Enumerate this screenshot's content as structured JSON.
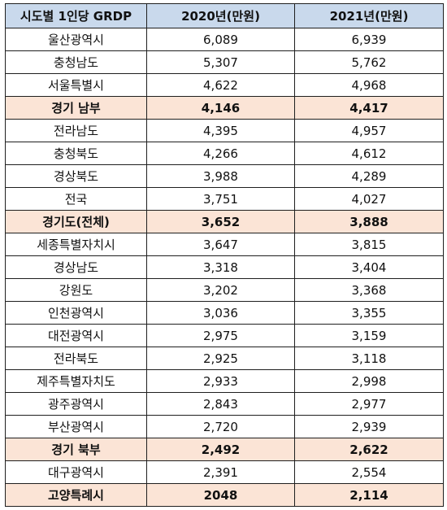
{
  "table": {
    "headers": [
      "시도별 1인당 GRDP",
      "2020년(만원)",
      "2021년(만원)"
    ],
    "rows": [
      {
        "region": "울산광역시",
        "y2020": "6,089",
        "y2021": "6,939",
        "highlight": false
      },
      {
        "region": "충청남도",
        "y2020": "5,307",
        "y2021": "5,762",
        "highlight": false
      },
      {
        "region": "서울특별시",
        "y2020": "4,622",
        "y2021": "4,968",
        "highlight": false
      },
      {
        "region": "경기 남부",
        "y2020": "4,146",
        "y2021": "4,417",
        "highlight": true
      },
      {
        "region": "전라남도",
        "y2020": "4,395",
        "y2021": "4,957",
        "highlight": false
      },
      {
        "region": "충청북도",
        "y2020": "4,266",
        "y2021": "4,612",
        "highlight": false
      },
      {
        "region": "경상북도",
        "y2020": "3,988",
        "y2021": "4,289",
        "highlight": false
      },
      {
        "region": "전국",
        "y2020": "3,751",
        "y2021": "4,027",
        "highlight": false
      },
      {
        "region": "경기도(전체)",
        "y2020": "3,652",
        "y2021": "3,888",
        "highlight": true
      },
      {
        "region": "세종특별자치시",
        "y2020": "3,647",
        "y2021": "3,815",
        "highlight": false
      },
      {
        "region": "경상남도",
        "y2020": "3,318",
        "y2021": "3,404",
        "highlight": false
      },
      {
        "region": "강원도",
        "y2020": "3,202",
        "y2021": "3,368",
        "highlight": false
      },
      {
        "region": "인천광역시",
        "y2020": "3,036",
        "y2021": "3,355",
        "highlight": false
      },
      {
        "region": "대전광역시",
        "y2020": "2,975",
        "y2021": "3,159",
        "highlight": false
      },
      {
        "region": "전라북도",
        "y2020": "2,925",
        "y2021": "3,118",
        "highlight": false
      },
      {
        "region": "제주특별자치도",
        "y2020": "2,933",
        "y2021": "2,998",
        "highlight": false
      },
      {
        "region": "광주광역시",
        "y2020": "2,843",
        "y2021": "2,977",
        "highlight": false
      },
      {
        "region": "부산광역시",
        "y2020": "2,720",
        "y2021": "2,939",
        "highlight": false
      },
      {
        "region": "경기 북부",
        "y2020": "2,492",
        "y2021": "2,622",
        "highlight": true
      },
      {
        "region": "대구광역시",
        "y2020": "2,391",
        "y2021": "2,554",
        "highlight": false
      },
      {
        "region": "고양특례시",
        "y2020": "2048",
        "y2021": "2,114",
        "highlight": true
      }
    ]
  },
  "colors": {
    "header_bg": "#c9d9ec",
    "highlight_bg": "#fbe4d6",
    "border": "#1f1f1f"
  }
}
